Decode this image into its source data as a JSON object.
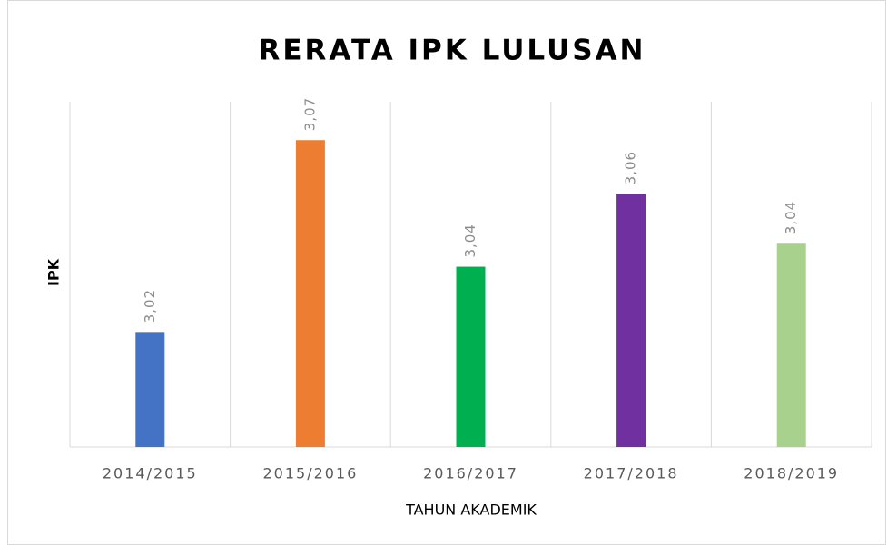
{
  "chart_data": {
    "type": "bar",
    "title": "RERATA IPK LULUSAN",
    "x_label": "TAHUN AKADEMIK",
    "y_label": "IPK",
    "categories": [
      "2014/2015",
      "2015/2016",
      "2016/2017",
      "2017/2018",
      "2018/2019"
    ],
    "values": [
      3.02,
      3.07,
      3.037,
      3.056,
      3.043
    ],
    "value_labels": [
      "3,02",
      "3,07",
      "3,04",
      "3,06",
      "3,04"
    ],
    "colors": [
      "#4472c4",
      "#ed7d31",
      "#00b050",
      "#7030a0",
      "#a9d18e"
    ],
    "ylim": [
      2.99,
      3.08
    ]
  }
}
